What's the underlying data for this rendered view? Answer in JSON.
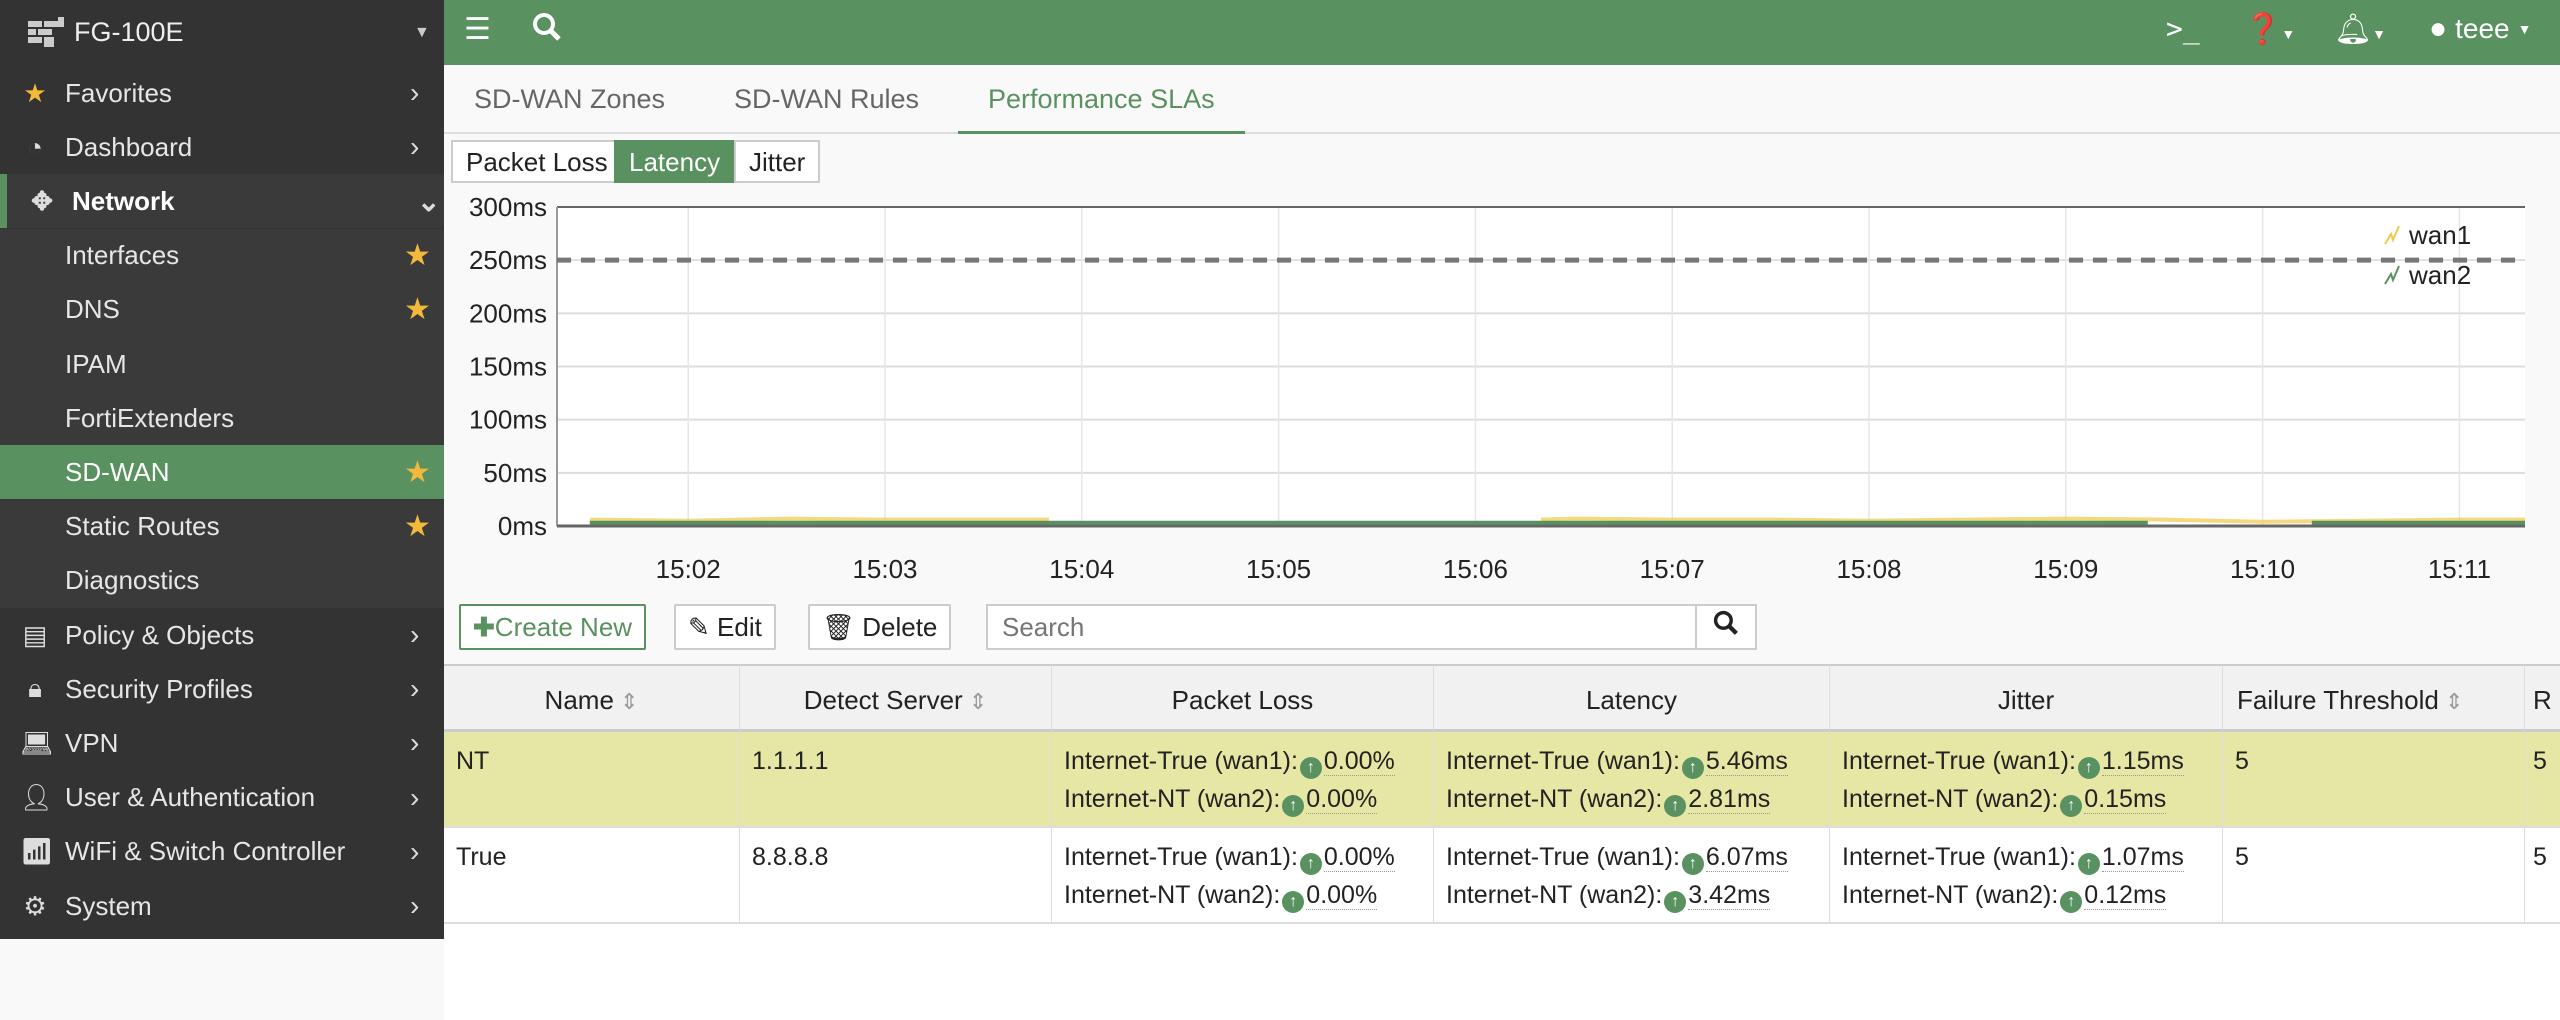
{
  "device": "FG-100E",
  "sidebar": {
    "items": [
      {
        "label": "Favorites",
        "icon": "star-icon"
      },
      {
        "label": "Dashboard",
        "icon": "dashboard-icon"
      },
      {
        "label": "Network",
        "icon": "move-icon"
      },
      {
        "label": "Interfaces",
        "starred": true
      },
      {
        "label": "DNS",
        "starred": true
      },
      {
        "label": "IPAM"
      },
      {
        "label": "FortiExtenders"
      },
      {
        "label": "SD-WAN",
        "starred": true
      },
      {
        "label": "Static Routes",
        "starred": true
      },
      {
        "label": "Diagnostics"
      },
      {
        "label": "Policy & Objects",
        "icon": "policy-icon"
      },
      {
        "label": "Security Profiles",
        "icon": "lock-icon"
      },
      {
        "label": "VPN",
        "icon": "laptop-icon"
      },
      {
        "label": "User & Authentication",
        "icon": "user-icon"
      },
      {
        "label": "WiFi & Switch Controller",
        "icon": "wifi-icon"
      },
      {
        "label": "System",
        "icon": "gear-icon"
      }
    ]
  },
  "topbar": {
    "user": "teee"
  },
  "tabs": [
    "SD-WAN Zones",
    "SD-WAN Rules",
    "Performance SLAs"
  ],
  "active_tab": "Performance SLAs",
  "metric_buttons": [
    "Packet Loss",
    "Latency",
    "Jitter"
  ],
  "active_metric": "Latency",
  "colors": {
    "accent": "#5a9160",
    "wan1": "#f0c94a",
    "wan2": "#5a9160",
    "selected_row": "#e6e6a5"
  },
  "chart_data": {
    "type": "line",
    "ylim": [
      0,
      300
    ],
    "yticks": [
      "0ms",
      "50ms",
      "100ms",
      "150ms",
      "200ms",
      "250ms",
      "300ms"
    ],
    "xticks": [
      "15:02",
      "15:03",
      "15:04",
      "15:05",
      "15:06",
      "15:07",
      "15:08",
      "15:09",
      "15:10",
      "15:11"
    ],
    "threshold": 250,
    "legend": "top-right",
    "series": [
      {
        "name": "wan1",
        "x": [
          "15:01:30",
          "15:02:00",
          "15:02:30",
          "15:03:00",
          "15:03:30",
          "15:03:50",
          null,
          "15:06:20",
          "15:06:30",
          "15:07:00",
          "15:07:30",
          "15:08:00",
          "15:08:30",
          "15:09:00",
          "15:09:30",
          "15:10:00",
          "15:10:30",
          "15:11:00",
          "15:11:20"
        ],
        "y": [
          6,
          5,
          7,
          6,
          6,
          6,
          null,
          6,
          7,
          6,
          6,
          5,
          6,
          7,
          6,
          4,
          5,
          6,
          6
        ]
      },
      {
        "name": "wan2",
        "x": [
          "15:01:30",
          "15:02:00",
          "15:03:00",
          "15:04:00",
          "15:05:00",
          "15:06:00",
          "15:07:00",
          "15:08:00",
          "15:09:00",
          "15:09:25",
          null,
          "15:10:15",
          "15:11:00",
          "15:11:20"
        ],
        "y": [
          3,
          3,
          3,
          3,
          3,
          3,
          3,
          3,
          3,
          3,
          null,
          3,
          3,
          3
        ]
      }
    ]
  },
  "toolbar": {
    "create": "Create New",
    "edit": "Edit",
    "delete": "Delete",
    "search_placeholder": "Search"
  },
  "table": {
    "columns": [
      "Name",
      "Detect Server",
      "Packet Loss",
      "Latency",
      "Jitter",
      "Failure Threshold",
      "R"
    ],
    "rows": [
      {
        "name": "NT",
        "server": "1.1.1.1",
        "selected": true,
        "packet_loss": [
          "Internet-True (wan1):",
          "0.00%",
          "Internet-NT (wan2):",
          "0.00%"
        ],
        "latency": [
          "Internet-True (wan1):",
          "5.46ms",
          "Internet-NT (wan2):",
          "2.81ms"
        ],
        "jitter": [
          "Internet-True (wan1):",
          "1.15ms",
          "Internet-NT (wan2):",
          "0.15ms"
        ],
        "failure": "5",
        "r": "5"
      },
      {
        "name": "True",
        "server": "8.8.8.8",
        "selected": false,
        "packet_loss": [
          "Internet-True (wan1):",
          "0.00%",
          "Internet-NT (wan2):",
          "0.00%"
        ],
        "latency": [
          "Internet-True (wan1):",
          "6.07ms",
          "Internet-NT (wan2):",
          "3.42ms"
        ],
        "jitter": [
          "Internet-True (wan1):",
          "1.07ms",
          "Internet-NT (wan2):",
          "0.12ms"
        ],
        "failure": "5",
        "r": "5"
      }
    ]
  }
}
